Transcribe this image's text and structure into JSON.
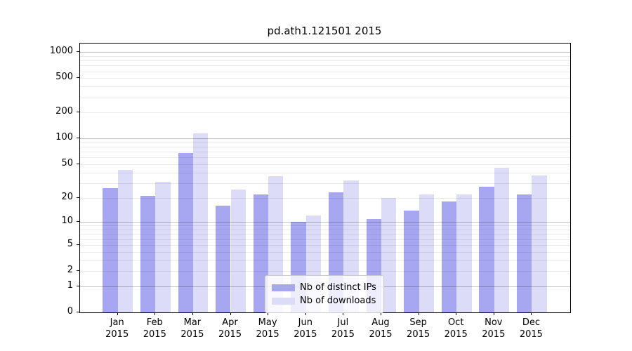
{
  "chart_data": {
    "type": "bar",
    "title": "pd.ath1.121501 2015",
    "year_label": "2015",
    "categories": [
      "Jan",
      "Feb",
      "Mar",
      "Apr",
      "May",
      "Jun",
      "Jul",
      "Aug",
      "Sep",
      "Oct",
      "Nov",
      "Dec"
    ],
    "series": [
      {
        "name": "Nb of distinct IPs",
        "color": "#a6a6f1",
        "values": [
          26,
          21,
          68,
          16,
          22,
          10,
          23,
          11,
          14,
          18,
          27,
          22
        ]
      },
      {
        "name": "Nb of downloads",
        "color": "#dcdcf8",
        "values": [
          43,
          31,
          115,
          25,
          36,
          12,
          32,
          20,
          22,
          22,
          45,
          37
        ]
      }
    ],
    "yticks": [
      0,
      1,
      2,
      5,
      10,
      20,
      50,
      100,
      200,
      500,
      1000
    ],
    "ylabel": "",
    "xlabel": "",
    "scale": "log10(1+y)",
    "ylim": [
      0,
      1250
    ],
    "grid": "on",
    "legend_position": "lower center"
  }
}
